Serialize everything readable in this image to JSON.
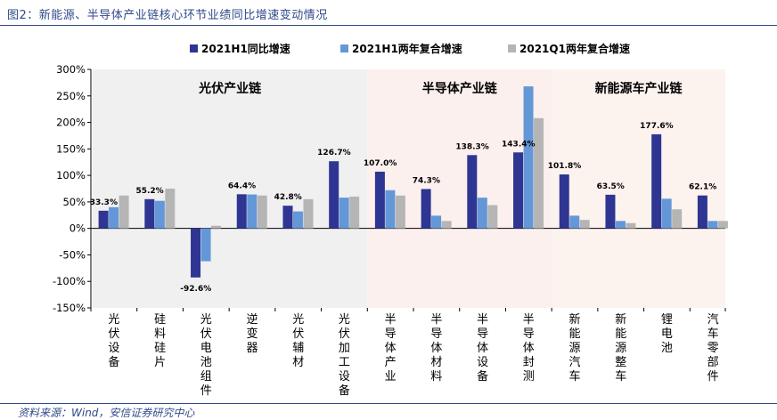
{
  "figure": {
    "title": "图2：新能源、半导体产业链核心环节业绩同比增速变动情况",
    "source": "资料来源：Wind，安信证券研究中心"
  },
  "chart_data": {
    "type": "bar",
    "title": "",
    "xlabel": "",
    "ylabel": "",
    "ylim": [
      -150,
      300
    ],
    "yticks": [
      -150,
      -100,
      -50,
      0,
      50,
      100,
      150,
      200,
      250,
      300
    ],
    "ytick_labels": [
      "-150%",
      "-100%",
      "-50%",
      "0%",
      "50%",
      "100%",
      "150%",
      "200%",
      "250%",
      "300%"
    ],
    "legend_position": "top",
    "categories": [
      "光伏设备",
      "硅料硅片",
      "光伏电池组件",
      "逆变器",
      "光伏辅材",
      "光伏加工设备",
      "半导体产业",
      "半导体材料",
      "半导体设备",
      "半导体封测",
      "新能源汽车",
      "新能源整车",
      "锂电池",
      "汽车零部件"
    ],
    "series": [
      {
        "name": "2021H1同比增速",
        "color": "#2e3592",
        "values": [
          33.3,
          55.2,
          -92.6,
          64.4,
          42.8,
          126.7,
          107.0,
          74.3,
          138.3,
          143.4,
          101.8,
          63.5,
          177.6,
          62.1
        ]
      },
      {
        "name": "2021H1两年复合增速",
        "color": "#6497d8",
        "values": [
          40,
          52,
          -62,
          64,
          32,
          58,
          72,
          24,
          58,
          268,
          24,
          14,
          56,
          14
        ]
      },
      {
        "name": "2021Q1两年复合增速",
        "color": "#b5b5b5",
        "values": [
          62,
          75,
          5,
          62,
          55,
          60,
          62,
          14,
          44,
          208,
          16,
          10,
          36,
          14
        ]
      }
    ],
    "data_labels": [
      "33.3%",
      "55.2%",
      "-92.6%",
      "64.4%",
      "42.8%",
      "126.7%",
      "107.0%",
      "74.3%",
      "138.3%",
      "143.4%",
      "101.8%",
      "63.5%",
      "177.6%",
      "62.1%"
    ],
    "groups": [
      {
        "label": "光伏产业链",
        "first": 0,
        "last": 5,
        "color": "#f0f0f0"
      },
      {
        "label": "半导体产业链",
        "first": 6,
        "last": 9,
        "color": "#fbf0ee"
      },
      {
        "label": "新能源车产业链",
        "first": 10,
        "last": 13,
        "color": "#fcf2ee"
      }
    ]
  }
}
